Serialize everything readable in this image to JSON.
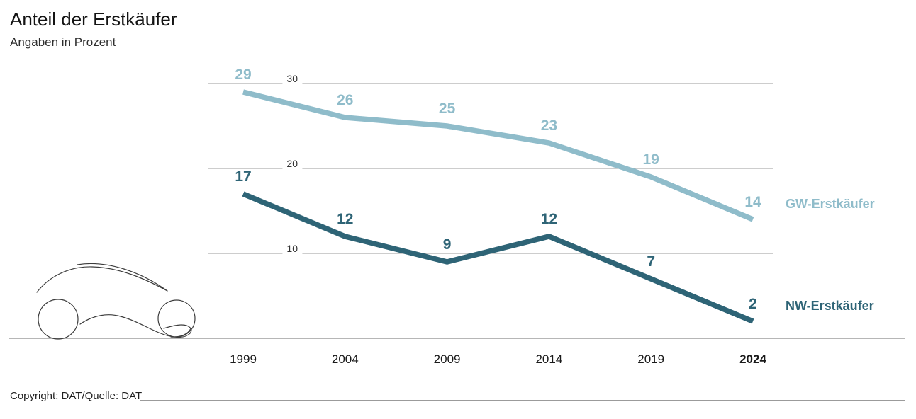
{
  "header": {
    "title": "Anteil der Erstkäufer",
    "subtitle": "Angaben in Prozent"
  },
  "chart_data": {
    "type": "line",
    "x": [
      "1999",
      "2004",
      "2009",
      "2014",
      "2019",
      "2024"
    ],
    "emphasized_x": "2024",
    "series": [
      {
        "name": "GW-Erstkäufer",
        "color": "#8fbcca",
        "values": [
          29,
          26,
          25,
          23,
          19,
          14
        ]
      },
      {
        "name": "NW-Erstkäufer",
        "color": "#2e6476",
        "values": [
          17,
          12,
          9,
          12,
          7,
          2
        ]
      }
    ],
    "gridlines": [
      {
        "value": 30,
        "label": "30"
      },
      {
        "value": 20,
        "label": "20"
      },
      {
        "value": 10,
        "label": "10"
      }
    ],
    "baseline_value": 0,
    "ylim": [
      0,
      32
    ],
    "grid": "horizontal",
    "legend_position": "right-of-line-ends",
    "data_labels": true
  },
  "footer": {
    "copyright": "Copyright: DAT/Quelle: DAT"
  },
  "colors": {
    "gridline": "#9b9b9b",
    "baseline": "#8a8a8a",
    "text": "#1a1a1a",
    "car_sketch": "#3c3c3c"
  }
}
